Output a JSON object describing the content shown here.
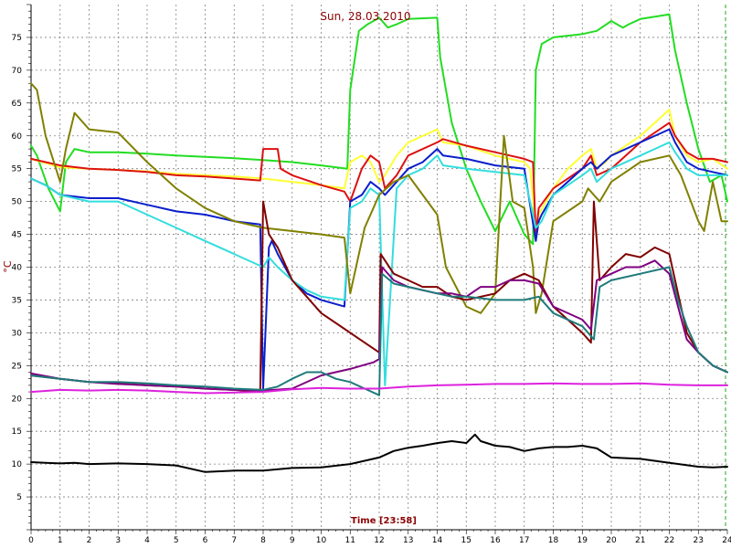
{
  "chart_data": {
    "type": "line",
    "title": "Sun, 28.03.2010",
    "xlabel": "Time [23:58]",
    "ylabel": "°C",
    "xlim": [
      0,
      24
    ],
    "ylim": [
      0,
      80
    ],
    "x_ticks": [
      "0",
      "1",
      "2",
      "3",
      "4",
      "5",
      "6",
      "7",
      "8",
      "9",
      "10",
      "11",
      "12",
      "13",
      "14",
      "15",
      "16",
      "17",
      "18",
      "19",
      "20",
      "21",
      "22",
      "23",
      "24"
    ],
    "y_ticks": [
      "5",
      "10",
      "15",
      "20",
      "25",
      "30",
      "35",
      "40",
      "45",
      "50",
      "55",
      "60",
      "65",
      "70",
      "75"
    ],
    "grid": true,
    "colors": {
      "background": "#ffffff",
      "grid": "#808080",
      "title": "#8b0000",
      "axis_label": "#8b0000"
    },
    "series": [
      {
        "color": "#22dd22",
        "x": [
          0,
          0.2,
          0.6,
          1.0,
          1.2,
          1.5,
          2,
          3,
          4,
          5,
          6,
          7,
          8,
          9,
          10,
          10.9,
          11.0,
          11.3,
          11.6,
          12,
          12.3,
          12.6,
          13,
          14,
          14.1,
          14.5,
          15,
          15.5,
          16,
          16.5,
          17,
          17.3,
          17.4,
          17.6,
          18,
          19,
          19.5,
          20,
          20.4,
          20.6,
          21,
          22,
          22.2,
          22.6,
          23,
          23.4,
          23.8,
          24
        ],
        "y": [
          58.5,
          57,
          52,
          48.5,
          56,
          58,
          57.5,
          57.5,
          57.3,
          57,
          56.8,
          56.6,
          56.3,
          56,
          55.5,
          55,
          67,
          76,
          77,
          78,
          76.5,
          77,
          77.8,
          78,
          72,
          62,
          55,
          50,
          45.5,
          50,
          45,
          43.5,
          70,
          74,
          75,
          75.5,
          76,
          77.5,
          76.5,
          77,
          77.8,
          78.5,
          73,
          65,
          58,
          53,
          54,
          50
        ]
      },
      {
        "color": "#ffff33",
        "x": [
          0,
          1,
          2,
          3,
          4,
          5,
          6,
          7,
          8,
          9,
          10,
          10.8,
          11,
          11.4,
          11.7,
          12,
          12.2,
          12.6,
          13,
          13.5,
          14,
          14.2,
          15,
          16,
          17,
          17.2,
          17.4,
          17.5,
          18,
          18.5,
          19,
          19.3,
          19.5,
          19.8,
          20,
          21,
          22,
          22.2,
          22.6,
          23,
          23.5,
          24
        ],
        "y": [
          56.5,
          55.2,
          55,
          54.8,
          54.6,
          54.2,
          54,
          53.8,
          53.5,
          53,
          52.5,
          52,
          56,
          57,
          56,
          53,
          54,
          57,
          59,
          60,
          61,
          59,
          58.5,
          57,
          56,
          55,
          46,
          48,
          52,
          55,
          57,
          58,
          55,
          56,
          57,
          60,
          64,
          60,
          57,
          56,
          56.5,
          55
        ]
      },
      {
        "color": "#dd1111",
        "x": [
          0,
          1,
          2,
          3,
          4,
          5,
          6,
          7,
          7.9,
          8.0,
          8.5,
          8.6,
          9,
          10,
          10.8,
          11,
          11.4,
          11.7,
          12,
          12.2,
          12.6,
          13,
          14,
          14.2,
          15,
          16,
          17,
          17.3,
          17.4,
          17.5,
          18,
          19,
          19.3,
          19.5,
          20,
          21,
          22,
          22.2,
          22.6,
          23,
          23.5,
          24
        ],
        "y": [
          56.5,
          55.5,
          55,
          54.8,
          54.5,
          54,
          53.8,
          53.5,
          53.2,
          58,
          58,
          55,
          54,
          52.5,
          51.5,
          50,
          55,
          57,
          56,
          52,
          54,
          57,
          59,
          59.5,
          58.5,
          57.5,
          56.5,
          56,
          45,
          49,
          52,
          55,
          57,
          54,
          55,
          59,
          62,
          60,
          57.5,
          56.5,
          56.5,
          56
        ]
      },
      {
        "color": "#0a1ecc",
        "x": [
          0,
          0.5,
          1,
          2,
          3,
          4,
          5,
          6,
          7,
          7.9,
          8.0,
          8.2,
          8.3,
          8.5,
          9,
          9.5,
          10,
          10.8,
          11,
          11.4,
          11.7,
          12,
          12.2,
          12.6,
          13,
          13.5,
          14,
          14.2,
          15,
          16,
          17,
          17.4,
          17.5,
          17.6,
          18,
          19,
          19.3,
          19.5,
          20,
          21,
          22,
          22.2,
          22.6,
          23,
          23.5,
          24
        ],
        "y": [
          53.5,
          52.5,
          51,
          50.5,
          50.5,
          49.5,
          48.5,
          48,
          47,
          46.5,
          21.5,
          43,
          44,
          42,
          38,
          36,
          35,
          34,
          50,
          51,
          53,
          52,
          51,
          53,
          55,
          56,
          58,
          57,
          56.5,
          55.5,
          55,
          44,
          47,
          48,
          51,
          55,
          56,
          55,
          57,
          59,
          61,
          59,
          56,
          55,
          54.5,
          54
        ]
      },
      {
        "color": "#33dddd",
        "x": [
          0,
          0.5,
          1,
          2,
          3,
          4,
          5,
          6,
          7,
          8,
          8.2,
          8.3,
          8.5,
          9,
          9.5,
          10,
          10.8,
          11,
          11.4,
          11.7,
          12,
          12.2,
          12.6,
          13,
          13.5,
          14,
          14.2,
          15,
          16,
          17,
          17.4,
          17.6,
          18,
          19,
          19.3,
          19.5,
          20,
          21,
          22,
          22.2,
          22.6,
          23,
          23.5,
          24
        ],
        "y": [
          53.5,
          52.5,
          51,
          50,
          50,
          48,
          46,
          44,
          42,
          40,
          41.5,
          41,
          40,
          38,
          36.5,
          35.5,
          35,
          49,
          50,
          52,
          51,
          22,
          52,
          54,
          55,
          57,
          55.5,
          55,
          54.5,
          54,
          46,
          47,
          51,
          54,
          55,
          53,
          55,
          57,
          59,
          57.5,
          55,
          54,
          54,
          54
        ]
      },
      {
        "color": "#808000",
        "x": [
          0,
          0.2,
          0.5,
          1,
          1.2,
          1.5,
          2,
          3,
          4,
          5,
          6,
          7,
          8,
          9,
          10,
          10.8,
          11,
          11.5,
          12,
          12.5,
          13,
          14,
          14.3,
          15,
          15.5,
          16,
          16.3,
          16.6,
          17,
          17.3,
          17.4,
          17.6,
          18,
          19,
          19.2,
          19.4,
          19.6,
          20,
          21,
          22,
          22.4,
          23,
          23.2,
          23.5,
          23.8,
          24
        ],
        "y": [
          68,
          67,
          60,
          53,
          58,
          63.5,
          61,
          60.5,
          56,
          52,
          49,
          47,
          46,
          45.5,
          45,
          44.5,
          36,
          46,
          51,
          53,
          54,
          48,
          40,
          34,
          33,
          36,
          60,
          50,
          49,
          40,
          33,
          36,
          47,
          50,
          52,
          51,
          50,
          53,
          56,
          57,
          54,
          47,
          45.5,
          53,
          47,
          47
        ]
      },
      {
        "color": "#800000",
        "x": [
          0,
          1,
          2,
          3,
          4,
          5,
          6,
          7,
          7.9,
          8.0,
          8.2,
          8.5,
          9,
          10,
          11,
          12,
          12.05,
          12.5,
          13,
          13.5,
          14,
          14.5,
          15,
          16,
          16.5,
          17,
          17.5,
          18,
          19,
          19.3,
          19.4,
          19.6,
          20,
          20.5,
          21,
          21.5,
          22,
          22.3,
          22.6,
          23,
          23.5,
          24
        ],
        "y": [
          23.5,
          23,
          22.5,
          22.3,
          22,
          21.8,
          21.5,
          21.3,
          21,
          50,
          45,
          43,
          38,
          33,
          30,
          27,
          42,
          39,
          38,
          37,
          37,
          35.5,
          35,
          36,
          38,
          39,
          38,
          34,
          30,
          28.5,
          50,
          38,
          40,
          42,
          41.5,
          43,
          42,
          36,
          30,
          27,
          25,
          24
        ]
      },
      {
        "color": "#800080",
        "x": [
          0,
          1,
          2,
          3,
          4,
          5,
          6,
          7,
          8,
          9,
          10,
          11,
          11.8,
          12,
          12.1,
          12.5,
          13,
          13.5,
          14,
          14.5,
          15,
          15.5,
          16,
          16.5,
          17,
          17.5,
          18,
          19,
          19.3,
          19.5,
          20,
          20.5,
          21,
          21.5,
          22,
          22.3,
          22.6,
          23,
          23.5,
          24
        ],
        "y": [
          23.8,
          23,
          22.5,
          22.2,
          22,
          21.8,
          21.5,
          21.3,
          21.2,
          21.5,
          23.5,
          24.5,
          25.5,
          26,
          40,
          38,
          37,
          36.5,
          36,
          36,
          35.5,
          37,
          37,
          38,
          38,
          37.5,
          34,
          32,
          30.5,
          38,
          39,
          40,
          40,
          41,
          39,
          34,
          29,
          27,
          25,
          24
        ]
      },
      {
        "color": "#1e7a7a",
        "x": [
          0,
          1,
          2,
          3,
          4,
          5,
          6,
          7,
          8,
          8.5,
          9,
          9.5,
          10,
          10.5,
          11,
          11.5,
          12,
          12.1,
          12.5,
          13,
          14,
          14.5,
          15,
          16,
          17,
          17.5,
          18,
          19,
          19.4,
          19.6,
          20,
          21,
          22,
          22.3,
          22.6,
          23,
          23.5,
          24
        ],
        "y": [
          23.5,
          23,
          22.5,
          22.5,
          22.3,
          22,
          21.8,
          21.5,
          21.3,
          21.8,
          23,
          24,
          24,
          23,
          22.5,
          21.5,
          20.5,
          39,
          37.5,
          37,
          36,
          35.5,
          35.5,
          35,
          35,
          35.5,
          33,
          31,
          29,
          37,
          38,
          39,
          40,
          35,
          31,
          27,
          25,
          24
        ]
      },
      {
        "color": "#dd22dd",
        "x": [
          0,
          1,
          2,
          3,
          4,
          5,
          6,
          7,
          8,
          9,
          10,
          11,
          12,
          13,
          14,
          15,
          16,
          17,
          18,
          19,
          20,
          21,
          22,
          23,
          24
        ],
        "y": [
          21,
          21.3,
          21.2,
          21.3,
          21.2,
          21,
          20.8,
          20.9,
          21,
          21.4,
          21.6,
          21.5,
          21.5,
          21.8,
          22,
          22.1,
          22.2,
          22.2,
          22.3,
          22.2,
          22.2,
          22.3,
          22.1,
          22,
          22
        ]
      },
      {
        "color": "#000000",
        "x": [
          0,
          0.5,
          1,
          1.5,
          2,
          3,
          4,
          5,
          6,
          7,
          8,
          9,
          10,
          11,
          12,
          12.5,
          13,
          13.5,
          14,
          14.5,
          15,
          15.3,
          15.5,
          16,
          16.5,
          17,
          17.5,
          18,
          18.5,
          19,
          19.5,
          20,
          21,
          22,
          23,
          23.5,
          24
        ],
        "y": [
          10.3,
          10.2,
          10.1,
          10.2,
          10,
          10.1,
          10,
          9.8,
          8.8,
          9,
          9,
          9.4,
          9.5,
          10,
          11,
          12,
          12.5,
          12.8,
          13.2,
          13.5,
          13.2,
          14.5,
          13.5,
          12.8,
          12.6,
          12,
          12.4,
          12.6,
          12.6,
          12.8,
          12.4,
          11,
          10.8,
          10.2,
          9.6,
          9.5,
          9.6
        ]
      }
    ]
  }
}
